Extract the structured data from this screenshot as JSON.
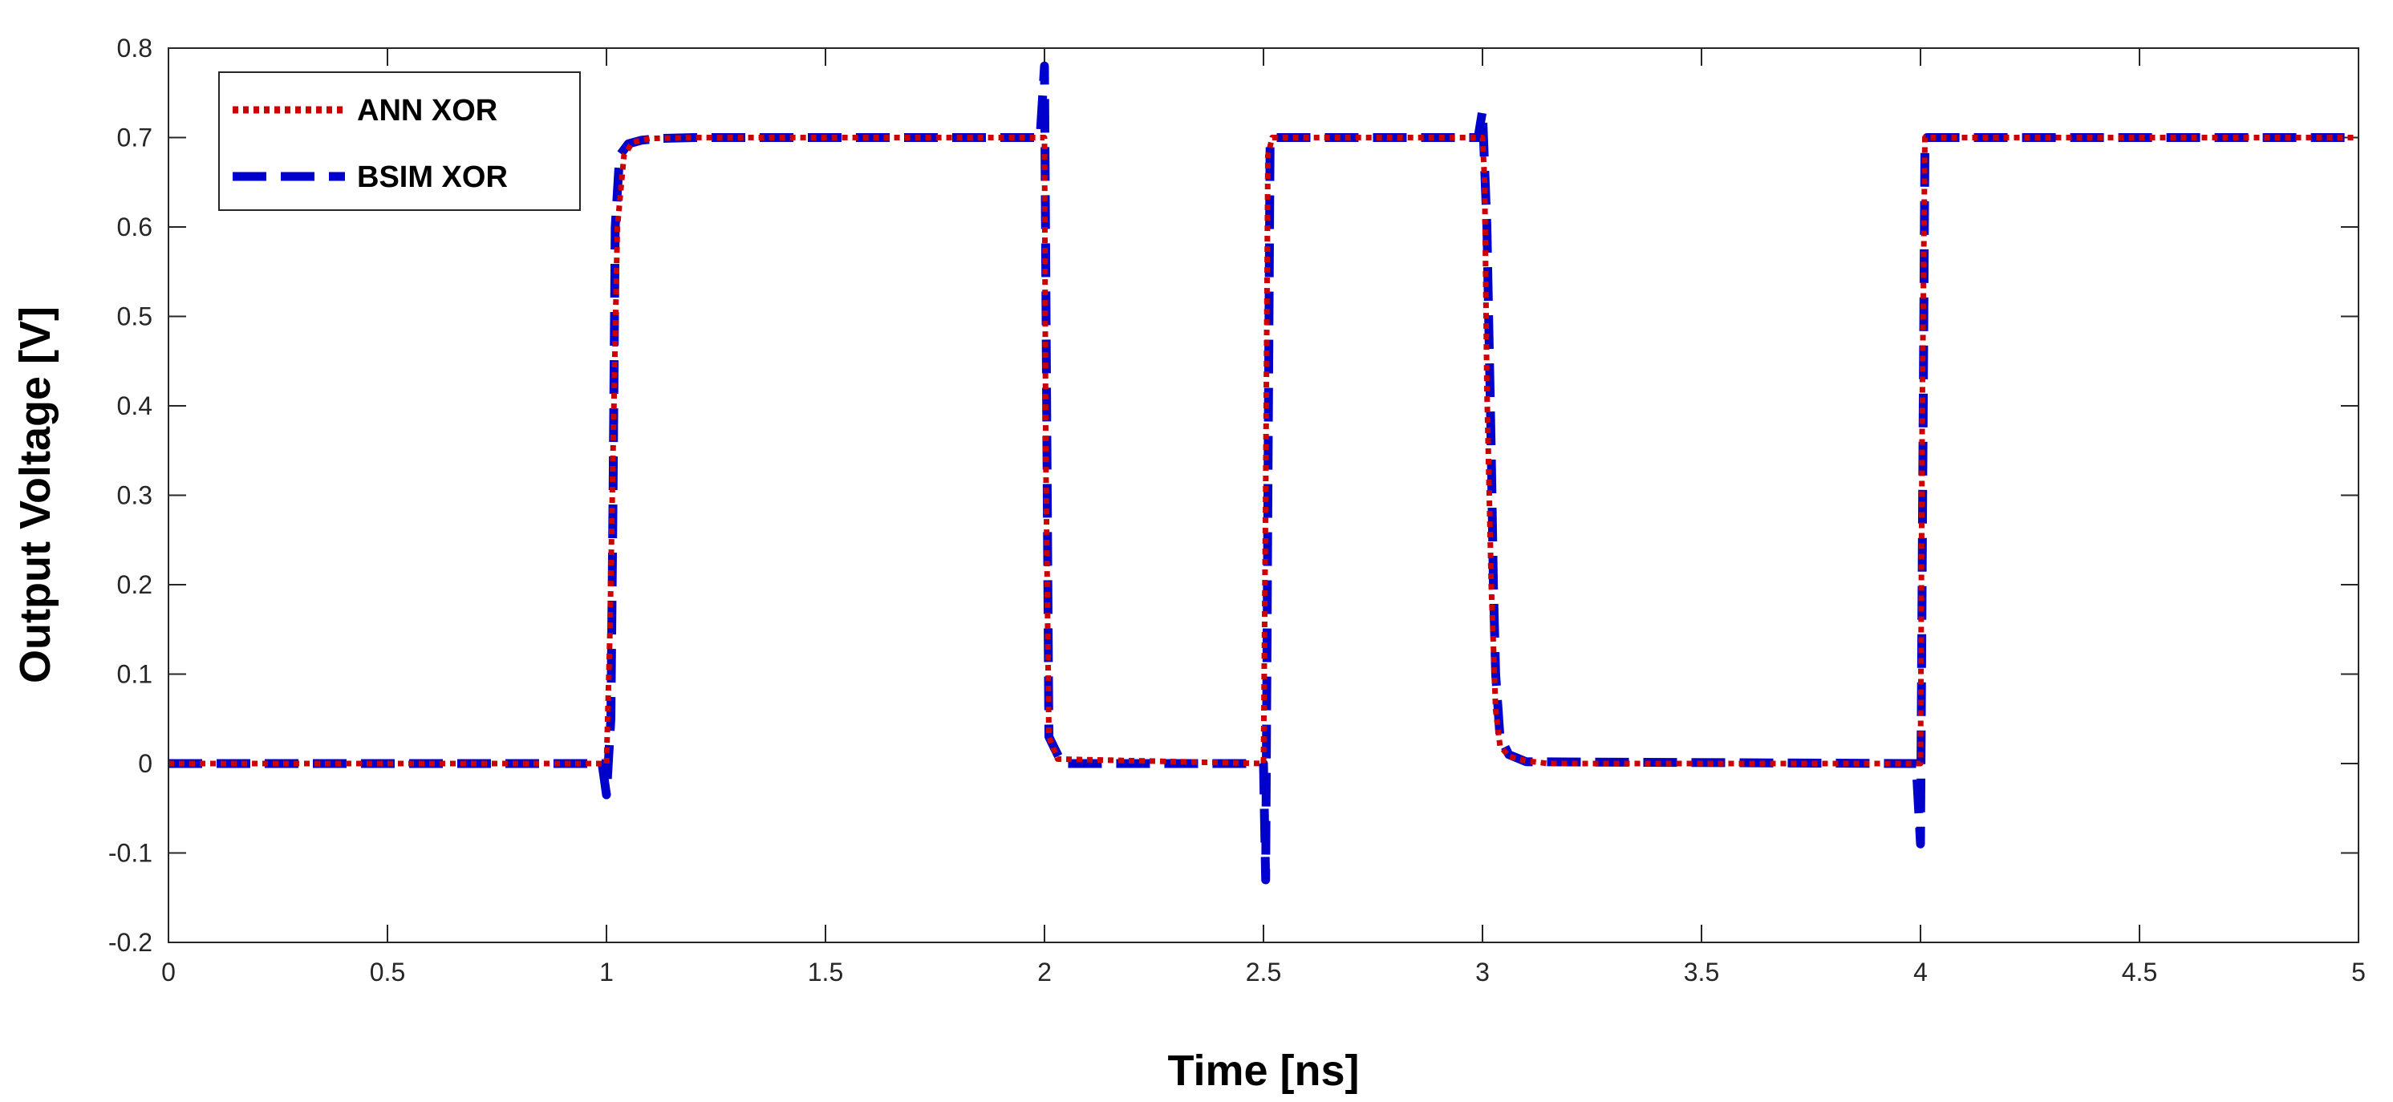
{
  "chart_data": {
    "type": "line",
    "xlabel": "Time [ns]",
    "ylabel": "Output Voltage [V]",
    "xlim": [
      0,
      5
    ],
    "ylim": [
      -0.2,
      0.8
    ],
    "xticks": [
      0,
      0.5,
      1,
      1.5,
      2,
      2.5,
      3,
      3.5,
      4,
      4.5,
      5
    ],
    "xtick_labels": [
      "0",
      "0.5",
      "1",
      "1.5",
      "2",
      "2.5",
      "3",
      "3.5",
      "4",
      "4.5",
      "5"
    ],
    "yticks": [
      -0.2,
      -0.1,
      0,
      0.1,
      0.2,
      0.3,
      0.4,
      0.5,
      0.6,
      0.7,
      0.8
    ],
    "ytick_labels": [
      "-0.2",
      "-0.1",
      "0",
      "0.1",
      "0.2",
      "0.3",
      "0.4",
      "0.5",
      "0.6",
      "0.7",
      "0.8"
    ],
    "grid": false,
    "legend_position": "top-left",
    "series": [
      {
        "name": "BSIM XOR",
        "color": "#0000cc",
        "style": "dashed",
        "x": [
          0,
          0.99,
          1.0,
          1.01,
          1.015,
          1.02,
          1.03,
          1.05,
          1.08,
          1.12,
          1.2,
          1.99,
          2.0,
          2.005,
          2.01,
          2.02,
          2.04,
          2.5,
          2.505,
          2.51,
          2.515,
          2.52,
          2.99,
          3.0,
          3.01,
          3.02,
          3.025,
          3.03,
          3.04,
          3.06,
          3.1,
          3.99,
          4.0,
          4.005,
          4.01,
          4.015,
          5
        ],
        "y": [
          0,
          0,
          -0.035,
          0.05,
          0.3,
          0.6,
          0.68,
          0.693,
          0.697,
          0.699,
          0.7,
          0.7,
          0.78,
          0.4,
          0.03,
          0.02,
          0.0,
          0.0,
          -0.13,
          0.3,
          0.69,
          0.7,
          0.7,
          0.73,
          0.6,
          0.35,
          0.2,
          0.1,
          0.03,
          0.01,
          0.002,
          0,
          -0.09,
          0.3,
          0.69,
          0.7,
          0.7
        ]
      },
      {
        "name": "ANN XOR",
        "color": "#cc0000",
        "style": "dotted",
        "x": [
          0,
          1.0,
          1.008,
          1.015,
          1.025,
          1.04,
          1.06,
          1.1,
          1.2,
          2.0,
          2.003,
          2.01,
          2.03,
          2.5,
          2.505,
          2.51,
          2.52,
          3.0,
          3.005,
          3.01,
          3.02,
          3.03,
          3.04,
          3.06,
          3.1,
          3.15,
          4.0,
          4.004,
          4.01,
          5
        ],
        "y": [
          0,
          0,
          0.15,
          0.35,
          0.6,
          0.68,
          0.695,
          0.699,
          0.7,
          0.7,
          0.35,
          0.03,
          0.005,
          0,
          0.3,
          0.68,
          0.7,
          0.7,
          0.65,
          0.42,
          0.2,
          0.06,
          0.02,
          0.008,
          0.003,
          0.0,
          0,
          0.4,
          0.7,
          0.7
        ]
      }
    ]
  }
}
